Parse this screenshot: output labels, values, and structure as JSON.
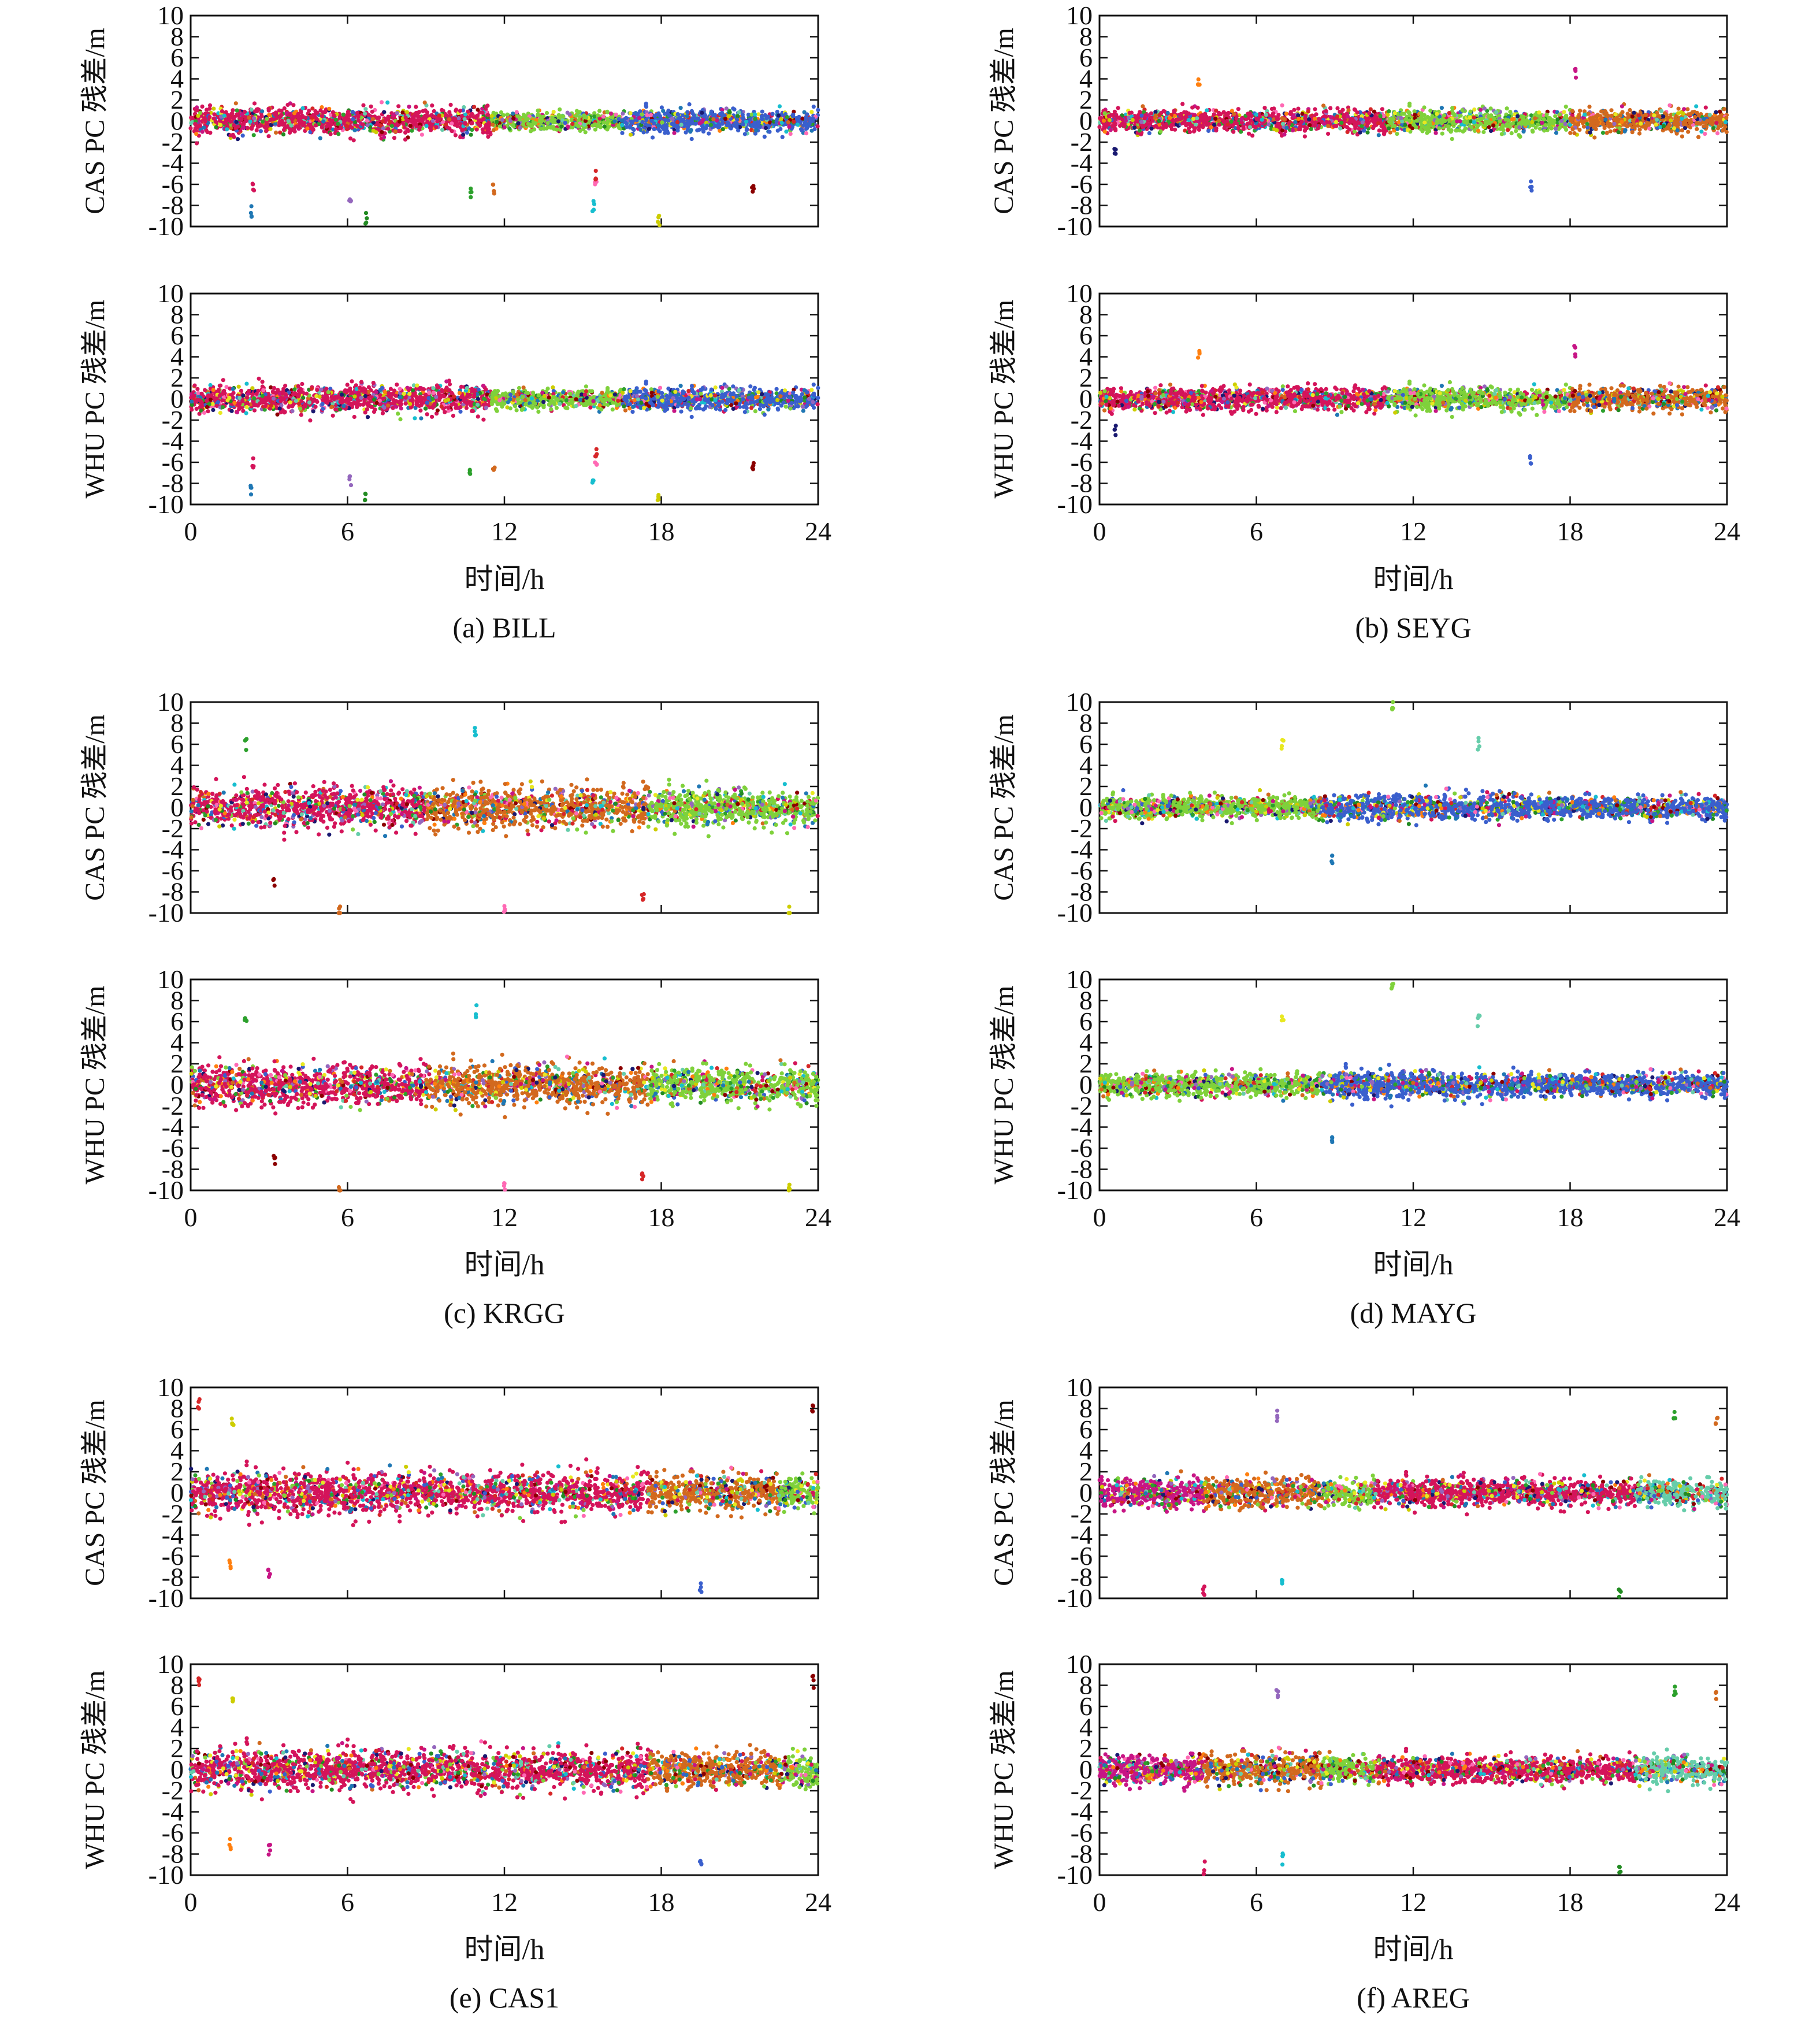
{
  "figure": {
    "x_label": "时间/h",
    "x_ticks": [
      0,
      6,
      12,
      18,
      24
    ],
    "y_ticks": [
      10,
      8,
      6,
      4,
      2,
      0,
      -2,
      -4,
      -6,
      -8,
      -10
    ],
    "top_ylabel": "CAS PC 残差/m",
    "bottom_ylabel": "WHU PC 残差/m",
    "captions": [
      "(a) BILL",
      "(b) SEYG",
      "(c) KRGG",
      "(d) MAYG",
      "(e) CAS1",
      "(f) AREG"
    ]
  },
  "palette": [
    "#1f77b4",
    "#3a5fcd",
    "#2ca02c",
    "#7fd13b",
    "#d62728",
    "#d4145a",
    "#ff7f0e",
    "#d2691e",
    "#e8e820",
    "#cdcd00",
    "#9467bd",
    "#c71585",
    "#17becf",
    "#66cdaa",
    "#8b0000",
    "#228b22",
    "#191970",
    "#ff69b4"
  ],
  "chart_data": [
    {
      "type": "scatter",
      "station": "BILL",
      "xlabel": "时间/h",
      "panels": [
        {
          "ylabel": "CAS PC 残差/m",
          "xlim": [
            0,
            24
          ],
          "ylim": [
            -10,
            10
          ]
        },
        {
          "ylabel": "WHU PC 残差/m",
          "xlim": [
            0,
            24
          ],
          "ylim": [
            -10,
            10
          ]
        }
      ],
      "noise_segments": [
        {
          "x": [
            0,
            11.5
          ],
          "sigma": 0.6,
          "color": "#d4145a"
        },
        {
          "x": [
            11.5,
            16.5
          ],
          "sigma": 0.4,
          "color": "#7fd13b"
        },
        {
          "x": [
            16.5,
            24
          ],
          "sigma": 0.5,
          "color": "#3a5fcd"
        }
      ],
      "outliers": [
        {
          "x": 2.3,
          "y": -8.5
        },
        {
          "x": 2.4,
          "y": -6.0
        },
        {
          "x": 6.1,
          "y": -7.9
        },
        {
          "x": 6.7,
          "y": -9.2
        },
        {
          "x": 10.7,
          "y": -7.0
        },
        {
          "x": 11.6,
          "y": -6.5
        },
        {
          "x": 15.4,
          "y": -8.0
        },
        {
          "x": 15.5,
          "y": -6.0
        },
        {
          "x": 15.5,
          "y": -5.0
        },
        {
          "x": 17.9,
          "y": -9.5
        },
        {
          "x": 21.5,
          "y": -6.5
        }
      ]
    },
    {
      "type": "scatter",
      "station": "SEYG",
      "xlabel": "时间/h",
      "panels": [
        {
          "ylabel": "CAS PC 残差/m",
          "xlim": [
            0,
            24
          ],
          "ylim": [
            -10,
            10
          ]
        },
        {
          "ylabel": "WHU PC 残差/m",
          "xlim": [
            0,
            24
          ],
          "ylim": [
            -10,
            10
          ]
        }
      ],
      "noise_segments": [
        {
          "x": [
            0,
            11
          ],
          "sigma": 0.5,
          "color": "#d4145a"
        },
        {
          "x": [
            11,
            18
          ],
          "sigma": 0.5,
          "color": "#7fd13b"
        },
        {
          "x": [
            18,
            24
          ],
          "sigma": 0.5,
          "color": "#d2691e"
        }
      ],
      "outliers": [
        {
          "x": 16.5,
          "y": -6.0
        },
        {
          "x": 3.8,
          "y": 4.0
        },
        {
          "x": 18.2,
          "y": 4.5
        },
        {
          "x": 0.6,
          "y": -3.0
        }
      ]
    },
    {
      "type": "scatter",
      "station": "KRGG",
      "xlabel": "时间/h",
      "panels": [
        {
          "ylabel": "CAS PC 残差/m",
          "xlim": [
            0,
            24
          ],
          "ylim": [
            -10,
            10
          ]
        },
        {
          "ylabel": "WHU PC 残差/m",
          "xlim": [
            0,
            24
          ],
          "ylim": [
            -10,
            10
          ]
        }
      ],
      "noise_segments": [
        {
          "x": [
            0,
            9
          ],
          "sigma": 0.9,
          "color": "#d4145a"
        },
        {
          "x": [
            9,
            17.5
          ],
          "sigma": 0.9,
          "color": "#d2691e"
        },
        {
          "x": [
            17.5,
            24
          ],
          "sigma": 0.8,
          "color": "#7fd13b"
        }
      ],
      "outliers": [
        {
          "x": 2.1,
          "y": 6.0
        },
        {
          "x": 5.7,
          "y": -9.8
        },
        {
          "x": 10.9,
          "y": 7.0
        },
        {
          "x": 12.0,
          "y": -9.5
        },
        {
          "x": 17.3,
          "y": -8.5
        },
        {
          "x": 22.9,
          "y": -9.8
        },
        {
          "x": 3.2,
          "y": -7.0
        }
      ]
    },
    {
      "type": "scatter",
      "station": "MAYG",
      "xlabel": "时间/h",
      "panels": [
        {
          "ylabel": "CAS PC 残差/m",
          "xlim": [
            0,
            24
          ],
          "ylim": [
            -10,
            10
          ]
        },
        {
          "ylabel": "WHU PC 残差/m",
          "xlim": [
            0,
            24
          ],
          "ylim": [
            -10,
            10
          ]
        }
      ],
      "noise_segments": [
        {
          "x": [
            0,
            8.5
          ],
          "sigma": 0.5,
          "color": "#7fd13b"
        },
        {
          "x": [
            8.5,
            16
          ],
          "sigma": 0.6,
          "color": "#3a5fcd"
        },
        {
          "x": [
            16,
            24
          ],
          "sigma": 0.5,
          "color": "#3a5fcd"
        }
      ],
      "outliers": [
        {
          "x": 11.2,
          "y": 9.7
        },
        {
          "x": 7.0,
          "y": 6.0
        },
        {
          "x": 14.5,
          "y": 6.0
        },
        {
          "x": 8.9,
          "y": -5.0
        }
      ]
    },
    {
      "type": "scatter",
      "station": "CAS1",
      "xlabel": "时间/h",
      "panels": [
        {
          "ylabel": "CAS PC 残差/m",
          "xlim": [
            0,
            24
          ],
          "ylim": [
            -10,
            10
          ]
        },
        {
          "ylabel": "WHU PC 残差/m",
          "xlim": [
            0,
            24
          ],
          "ylim": [
            -10,
            10
          ]
        }
      ],
      "noise_segments": [
        {
          "x": [
            0,
            17.5
          ],
          "sigma": 0.9,
          "color": "#d4145a"
        },
        {
          "x": [
            17.5,
            22.5
          ],
          "sigma": 0.8,
          "color": "#d2691e"
        },
        {
          "x": [
            22.5,
            24
          ],
          "sigma": 0.8,
          "color": "#7fd13b"
        }
      ],
      "outliers": [
        {
          "x": 0.3,
          "y": 8.3
        },
        {
          "x": 1.6,
          "y": 7.0
        },
        {
          "x": 23.8,
          "y": 8.3
        },
        {
          "x": 19.5,
          "y": -9.0
        },
        {
          "x": 1.5,
          "y": -7.0
        },
        {
          "x": 3.0,
          "y": -7.5
        }
      ]
    },
    {
      "type": "scatter",
      "station": "AREG",
      "xlabel": "时间/h",
      "panels": [
        {
          "ylabel": "CAS PC 残差/m",
          "xlim": [
            0,
            24
          ],
          "ylim": [
            -10,
            10
          ]
        },
        {
          "ylabel": "WHU PC 残差/m",
          "xlim": [
            0,
            24
          ],
          "ylim": [
            -10,
            10
          ]
        }
      ],
      "noise_segments": [
        {
          "x": [
            0,
            4
          ],
          "sigma": 0.7,
          "color": "#c71585"
        },
        {
          "x": [
            4,
            8.5
          ],
          "sigma": 0.7,
          "color": "#d2691e"
        },
        {
          "x": [
            8.5,
            10.5
          ],
          "sigma": 0.6,
          "color": "#7fd13b"
        },
        {
          "x": [
            10.5,
            20.5
          ],
          "sigma": 0.6,
          "color": "#d4145a"
        },
        {
          "x": [
            20.5,
            24
          ],
          "sigma": 0.6,
          "color": "#66cdaa"
        }
      ],
      "outliers": [
        {
          "x": 4.0,
          "y": -9.3
        },
        {
          "x": 6.8,
          "y": 7.2
        },
        {
          "x": 19.9,
          "y": -9.3
        },
        {
          "x": 22.0,
          "y": 7.5
        },
        {
          "x": 23.6,
          "y": 6.8
        },
        {
          "x": 7.0,
          "y": -8.5
        }
      ]
    }
  ]
}
